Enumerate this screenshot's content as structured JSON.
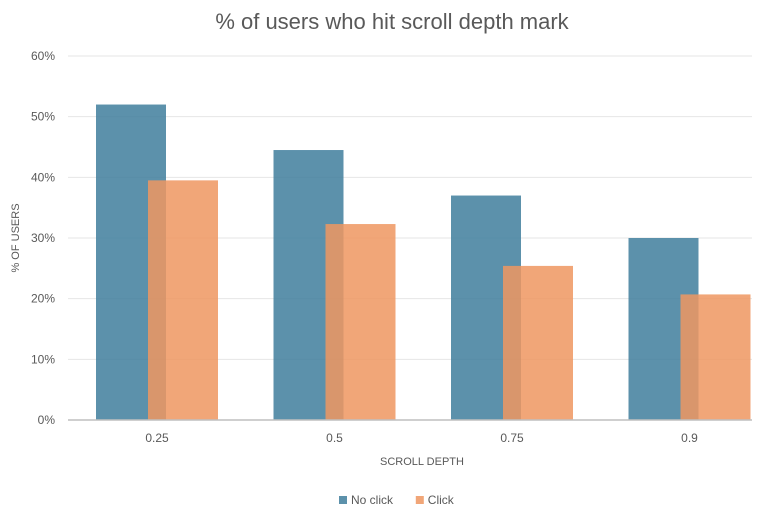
{
  "chart_data": {
    "type": "bar",
    "title": "% of users who hit scroll depth mark",
    "xlabel": "SCROLL DEPTH",
    "ylabel": "% OF USERS",
    "categories": [
      "0.25",
      "0.5",
      "0.75",
      "0.9"
    ],
    "series": [
      {
        "name": "No click",
        "values": [
          52,
          44.5,
          37,
          30
        ],
        "color": "#3F7E9C"
      },
      {
        "name": "Click",
        "values": [
          39.5,
          32.3,
          25.4,
          20.7
        ],
        "color": "#EE9660"
      }
    ],
    "ylim": [
      0,
      60
    ],
    "yticks": [
      "0%",
      "10%",
      "20%",
      "30%",
      "40%",
      "50%",
      "60%"
    ],
    "grid": true,
    "legend": "bottom",
    "bar_opacity": 0.85
  }
}
